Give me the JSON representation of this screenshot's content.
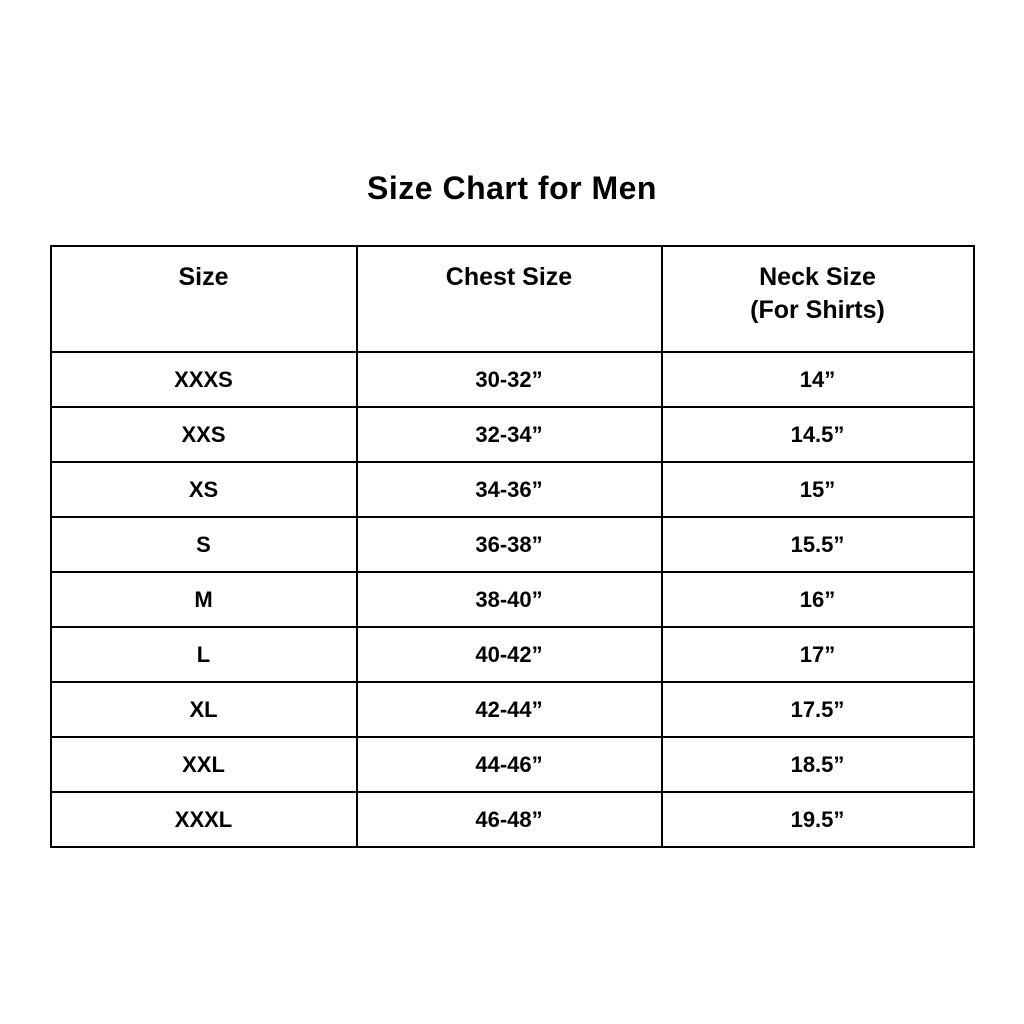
{
  "title": "Size Chart for Men",
  "table": {
    "headers": {
      "size": "Size",
      "chest": "Chest Size",
      "neck_line1": "Neck Size",
      "neck_line2": "(For Shirts)"
    },
    "rows": [
      {
        "size": "XXXS",
        "chest": "30-32”",
        "neck": "14”"
      },
      {
        "size": "XXS",
        "chest": "32-34”",
        "neck": "14.5”"
      },
      {
        "size": "XS",
        "chest": "34-36”",
        "neck": "15”"
      },
      {
        "size": "S",
        "chest": "36-38”",
        "neck": "15.5”"
      },
      {
        "size": "M",
        "chest": "38-40”",
        "neck": "16”"
      },
      {
        "size": "L",
        "chest": "40-42”",
        "neck": "17”"
      },
      {
        "size": "XL",
        "chest": "42-44”",
        "neck": "17.5”"
      },
      {
        "size": "XXL",
        "chest": "44-46”",
        "neck": "18.5”"
      },
      {
        "size": "XXXL",
        "chest": "46-48”",
        "neck": "19.5”"
      }
    ]
  },
  "colors": {
    "background": "#ffffff",
    "text": "#000000",
    "border": "#000000"
  },
  "chart_data": {
    "type": "table",
    "title": "Size Chart for Men",
    "columns": [
      "Size",
      "Chest Size",
      "Neck Size (For Shirts)"
    ],
    "rows": [
      [
        "XXXS",
        "30-32”",
        "14”"
      ],
      [
        "XXS",
        "32-34”",
        "14.5”"
      ],
      [
        "XS",
        "34-36”",
        "15”"
      ],
      [
        "S",
        "36-38”",
        "15.5”"
      ],
      [
        "M",
        "38-40”",
        "16”"
      ],
      [
        "L",
        "40-42”",
        "17”"
      ],
      [
        "XL",
        "42-44”",
        "17.5”"
      ],
      [
        "XXL",
        "44-46”",
        "18.5”"
      ],
      [
        "XXXL",
        "46-48”",
        "19.5”"
      ]
    ]
  }
}
